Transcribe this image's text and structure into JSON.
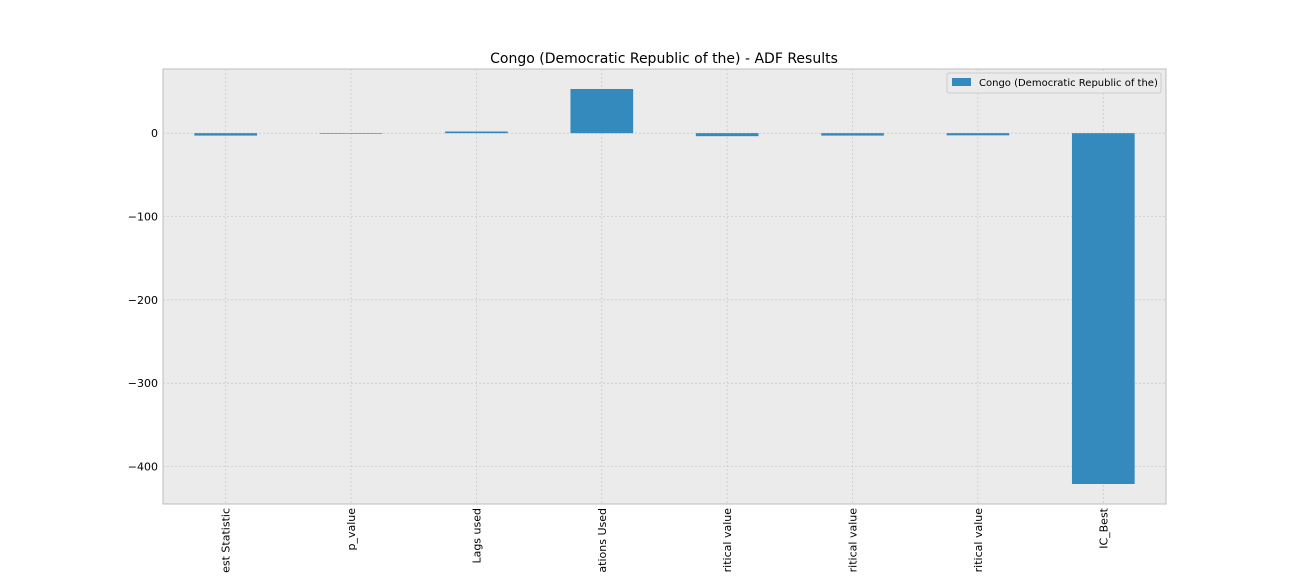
{
  "chart_data": {
    "type": "bar",
    "title": "Congo (Democratic Republic of the) - ADF Results",
    "xlabel": "",
    "ylabel": "",
    "categories": [
      "Test Statistic",
      "p_value",
      "Lags used",
      "Observations Used",
      "Critical value",
      "Critical value",
      "Critical value",
      "IC_Best"
    ],
    "category_tick_labels": [
      "est Statistic",
      "p_value",
      "Lags used",
      "ations Used",
      "ritical value",
      "ritical value",
      "ritical value",
      "IC_Best"
    ],
    "series": [
      {
        "name": "Congo (Democratic Republic of the)",
        "values": [
          -2.9,
          0.05,
          2,
          53,
          -3.6,
          -2.9,
          -2.6,
          -421
        ]
      }
    ],
    "ylim": [
      -445,
      77
    ],
    "yticks": [
      0,
      -100,
      -200,
      -300,
      -400
    ],
    "ytick_labels": [
      "0",
      "−100",
      "−200",
      "−300",
      "−400"
    ],
    "grid": true,
    "legend_position": "top-right",
    "colors": {
      "bar": "#348ABD",
      "plot_background": "#EBEBEB",
      "grid": "#CBCBCB",
      "axes_edge": "#BCBCBC",
      "text": "#000000"
    }
  }
}
